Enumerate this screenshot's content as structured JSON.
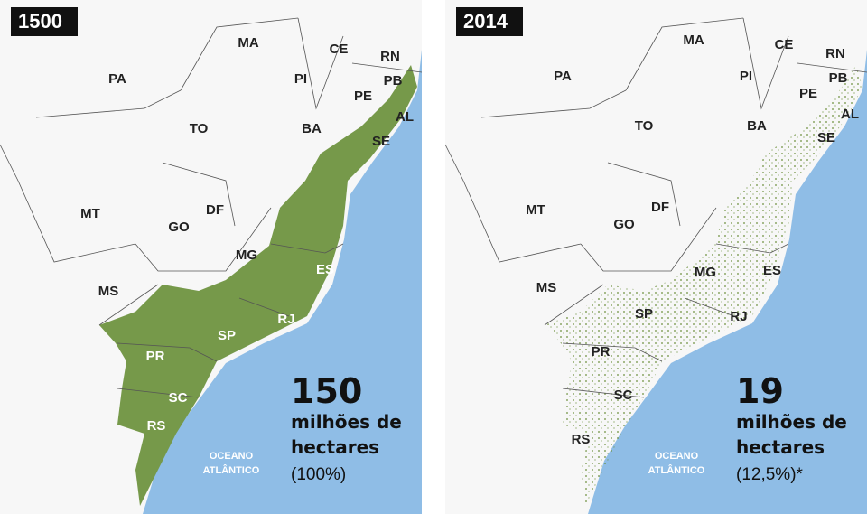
{
  "panels": [
    {
      "year": "1500",
      "states": [
        "PA",
        "MA",
        "CE",
        "RN",
        "PB",
        "PI",
        "PE",
        "AL",
        "TO",
        "BA",
        "SE",
        "MT",
        "DF",
        "GO",
        "MG",
        "ES",
        "MS",
        "SP",
        "RJ",
        "PR",
        "SC",
        "RS"
      ],
      "amount": "150",
      "unit_line1": "milhões de",
      "unit_line2": "hectares",
      "share": "(100%)",
      "ocean_line1": "OCEANO",
      "ocean_line2": "ATLÂNTICO"
    },
    {
      "year": "2014",
      "states": [
        "PA",
        "MA",
        "CE",
        "RN",
        "PB",
        "PI",
        "PE",
        "AL",
        "TO",
        "BA",
        "SE",
        "MT",
        "DF",
        "GO",
        "MG",
        "ES",
        "MS",
        "SP",
        "RJ",
        "PR",
        "SC",
        "RS"
      ],
      "amount": "19",
      "unit_line1": "milhões de",
      "unit_line2": "hectares",
      "share": "(12,5%)*",
      "ocean_line1": "OCEANO",
      "ocean_line2": "ATLÂNTICO"
    }
  ]
}
